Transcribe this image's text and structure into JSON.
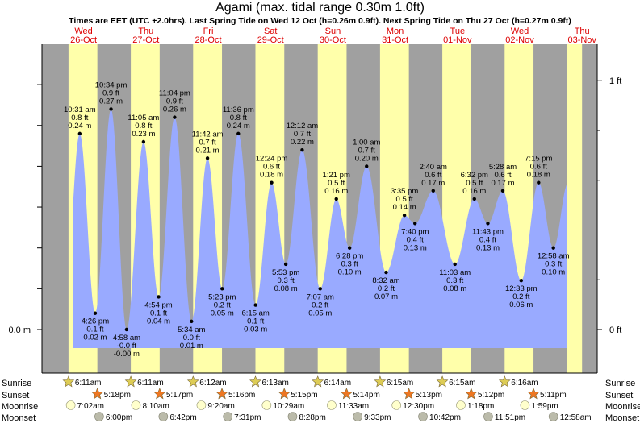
{
  "title": "Agami (max. tidal range 0.30m 1.0ft)",
  "subtitle": "Times are EET (UTC +2.0hrs). Last Spring Tide on Wed 12 Oct (h=0.26m 0.9ft). Next Spring Tide on Thu 27 Oct (h=0.27m 0.9ft)",
  "colors": {
    "day": "#ffffaa",
    "night": "#a0a0a0",
    "water": "#99aaff",
    "date_red": "#dd0000",
    "sunrise_star": "#ddcc55",
    "sunset_star": "#ee7722",
    "moonrise": "#ffffcc",
    "moonset": "#bbbbaa"
  },
  "chart_data": {
    "type": "area",
    "title": "Agami (max. tidal range 0.30m 1.0ft)",
    "x_unit": "days from 26-Oct 00:00 (EET)",
    "ylim_m": [
      -0.03,
      0.31
    ],
    "y_axis_left": {
      "labels": [
        "0.0 m"
      ],
      "values": [
        0.0
      ]
    },
    "y_axis_right": {
      "labels": [
        "1 ft",
        "0 ft"
      ],
      "values_ft": [
        1.0,
        0.0
      ]
    },
    "days": [
      {
        "weekday": "Wed",
        "date": "26-Oct"
      },
      {
        "weekday": "Thu",
        "date": "27-Oct"
      },
      {
        "weekday": "Fri",
        "date": "28-Oct"
      },
      {
        "weekday": "Sat",
        "date": "29-Oct"
      },
      {
        "weekday": "Sun",
        "date": "30-Oct"
      },
      {
        "weekday": "Mon",
        "date": "31-Oct"
      },
      {
        "weekday": "Tue",
        "date": "01-Nov"
      },
      {
        "weekday": "Wed",
        "date": "02-Nov"
      },
      {
        "weekday": "Thu",
        "date": "03-Nov"
      }
    ],
    "tides": [
      {
        "t": 0.438,
        "time": "10:31 am",
        "ft": "0.8 ft",
        "m": "0.24 m",
        "h": 0.24,
        "type": "high"
      },
      {
        "t": 0.686,
        "time": "4:26 pm",
        "ft": "0.1 ft",
        "m": "0.02 m",
        "h": 0.02,
        "type": "low"
      },
      {
        "t": 0.94,
        "time": "10:34 pm",
        "ft": "0.9 ft",
        "m": "0.27 m",
        "h": 0.27,
        "type": "high"
      },
      {
        "t": 1.19,
        "time": "4:58 am",
        "ft": "-0.0 ft",
        "m": "-0.00 m",
        "h": 0.0,
        "type": "low"
      },
      {
        "t": 1.462,
        "time": "11:05 am",
        "ft": "0.8 ft",
        "m": "0.23 m",
        "h": 0.23,
        "type": "high"
      },
      {
        "t": 1.704,
        "time": "4:54 pm",
        "ft": "0.1 ft",
        "m": "0.04 m",
        "h": 0.04,
        "type": "low"
      },
      {
        "t": 1.961,
        "time": "11:04 pm",
        "ft": "0.9 ft",
        "m": "0.26 m",
        "h": 0.26,
        "type": "high"
      },
      {
        "t": 2.232,
        "time": "5:34 am",
        "ft": "0.0 ft",
        "m": "0.01 m",
        "h": 0.01,
        "type": "low"
      },
      {
        "t": 2.488,
        "time": "11:42 am",
        "ft": "0.7 ft",
        "m": "0.21 m",
        "h": 0.21,
        "type": "high"
      },
      {
        "t": 2.724,
        "time": "5:23 pm",
        "ft": "0.2 ft",
        "m": "0.05 m",
        "h": 0.05,
        "type": "low"
      },
      {
        "t": 2.983,
        "time": "11:36 pm",
        "ft": "0.8 ft",
        "m": "0.24 m",
        "h": 0.24,
        "type": "high"
      },
      {
        "t": 3.26,
        "time": "6:15 am",
        "ft": "0.1 ft",
        "m": "0.03 m",
        "h": 0.03,
        "type": "low"
      },
      {
        "t": 3.517,
        "time": "12:24 pm",
        "ft": "0.6 ft",
        "m": "0.18 m",
        "h": 0.18,
        "type": "high"
      },
      {
        "t": 3.745,
        "time": "5:53 pm",
        "ft": "0.3 ft",
        "m": "0.08 m",
        "h": 0.08,
        "type": "low"
      },
      {
        "t": 4.008,
        "time": "12:12 am",
        "ft": "0.7 ft",
        "m": "0.22 m",
        "h": 0.22,
        "type": "high"
      },
      {
        "t": 4.297,
        "time": "7:07 am",
        "ft": "0.2 ft",
        "m": "0.05 m",
        "h": 0.05,
        "type": "low"
      },
      {
        "t": 4.556,
        "time": "1:21 pm",
        "ft": "0.5 ft",
        "m": "0.16 m",
        "h": 0.16,
        "type": "high"
      },
      {
        "t": 4.769,
        "time": "6:28 pm",
        "ft": "0.3 ft",
        "m": "0.10 m",
        "h": 0.1,
        "type": "low"
      },
      {
        "t": 5.042,
        "time": "1:00 am",
        "ft": "0.7 ft",
        "m": "0.20 m",
        "h": 0.2,
        "type": "high"
      },
      {
        "t": 5.356,
        "time": "8:32 am",
        "ft": "0.2 ft",
        "m": "0.07 m",
        "h": 0.07,
        "type": "low"
      },
      {
        "t": 5.649,
        "time": "3:35 pm",
        "ft": "0.5 ft",
        "m": "0.14 m",
        "h": 0.14,
        "type": "high"
      },
      {
        "t": 5.819,
        "time": "7:40 pm",
        "ft": "0.4 ft",
        "m": "0.13 m",
        "h": 0.13,
        "type": "low"
      },
      {
        "t": 6.111,
        "time": "2:40 am",
        "ft": "0.6 ft",
        "m": "0.17 m",
        "h": 0.17,
        "type": "high"
      },
      {
        "t": 6.46,
        "time": "11:03 am",
        "ft": "0.3 ft",
        "m": "0.08 m",
        "h": 0.08,
        "type": "low"
      },
      {
        "t": 6.772,
        "time": "6:32 pm",
        "ft": "0.5 ft",
        "m": "0.16 m",
        "h": 0.16,
        "type": "high"
      },
      {
        "t": 6.988,
        "time": "11:43 pm",
        "ft": "0.4 ft",
        "m": "0.13 m",
        "h": 0.13,
        "type": "low"
      },
      {
        "t": 7.228,
        "time": "5:28 am",
        "ft": "0.6 ft",
        "m": "0.17 m",
        "h": 0.17,
        "type": "high"
      },
      {
        "t": 7.523,
        "time": "12:33 pm",
        "ft": "0.2 ft",
        "m": "0.06 m",
        "h": 0.06,
        "type": "low"
      },
      {
        "t": 7.802,
        "time": "7:15 pm",
        "ft": "0.6 ft",
        "m": "0.18 m",
        "h": 0.18,
        "type": "high"
      },
      {
        "t": 8.04,
        "time": "12:58 am",
        "ft": "0.3 ft",
        "m": "0.10 m",
        "h": 0.1,
        "type": "low"
      }
    ],
    "sunrise": [
      "6:11am",
      "6:11am",
      "6:12am",
      "6:13am",
      "6:14am",
      "6:15am",
      "6:15am",
      "6:16am"
    ],
    "sunset": [
      "5:18pm",
      "5:17pm",
      "5:16pm",
      "5:15pm",
      "5:14pm",
      "5:13pm",
      "5:12pm",
      "5:11pm"
    ],
    "moonrise": [
      "7:02am",
      "8:10am",
      "9:20am",
      "10:29am",
      "11:33am",
      "12:30pm",
      "1:18pm",
      "1:59pm"
    ],
    "moonset": [
      "6:00pm",
      "6:42pm",
      "7:31pm",
      "8:28pm",
      "9:33pm",
      "10:42pm",
      "11:51pm",
      "12:58am"
    ],
    "sun_rows": {
      "sunrise_frac": 0.2576,
      "sunset_frac": 0.7208
    },
    "moonrise_frac": [
      0.293,
      0.34,
      0.389,
      0.437,
      0.481,
      0.521,
      0.554,
      0.583
    ],
    "moonset_frac": [
      0.75,
      0.779,
      0.813,
      0.853,
      0.898,
      0.946,
      0.994,
      1.04
    ]
  },
  "footer_labels": {
    "sunrise": "Sunrise",
    "sunset": "Sunset",
    "moonrise": "Moonrise",
    "moonset": "Moonset"
  }
}
